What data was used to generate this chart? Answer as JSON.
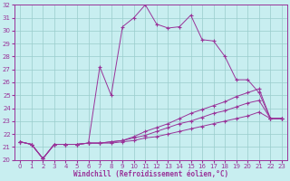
{
  "xlabel": "Windchill (Refroidissement éolien,°C)",
  "background_color": "#c8eef0",
  "line_color": "#993399",
  "grid_color": "#99cccc",
  "spine_color": "#993399",
  "xlim": [
    -0.5,
    23.5
  ],
  "ylim": [
    20,
    32
  ],
  "xticks": [
    0,
    1,
    2,
    3,
    4,
    5,
    6,
    7,
    8,
    9,
    10,
    11,
    12,
    13,
    14,
    15,
    16,
    17,
    18,
    19,
    20,
    21,
    22,
    23
  ],
  "yticks": [
    20,
    21,
    22,
    23,
    24,
    25,
    26,
    27,
    28,
    29,
    30,
    31,
    32
  ],
  "tick_fontsize": 5,
  "xlabel_fontsize": 5.5,
  "lines": [
    {
      "x": [
        0,
        1,
        2,
        3,
        4,
        5,
        6,
        7,
        8,
        9,
        10,
        11,
        12,
        13,
        14,
        15,
        16,
        17,
        18,
        19,
        20,
        21,
        22,
        23
      ],
      "y": [
        21.4,
        21.2,
        20.1,
        21.2,
        21.2,
        21.2,
        21.3,
        27.2,
        25.0,
        30.3,
        31.0,
        32.0,
        30.5,
        30.2,
        30.3,
        31.2,
        29.3,
        29.2,
        28.0,
        26.2,
        26.2,
        25.2,
        23.2,
        23.2
      ],
      "marker_x": [
        0,
        1,
        2,
        3,
        4,
        5,
        6,
        7,
        8,
        9,
        10,
        11,
        12,
        13,
        14,
        15,
        16,
        17,
        18,
        19,
        20,
        21,
        22,
        23
      ],
      "marker_y": [
        21.4,
        21.2,
        20.1,
        21.2,
        21.2,
        21.2,
        21.3,
        27.2,
        25.0,
        30.3,
        31.0,
        32.0,
        30.5,
        30.2,
        30.3,
        31.2,
        29.3,
        29.2,
        28.0,
        26.2,
        26.2,
        25.2,
        23.2,
        23.2
      ]
    },
    {
      "x": [
        0,
        1,
        2,
        3,
        4,
        5,
        6,
        7,
        8,
        9,
        10,
        11,
        12,
        13,
        14,
        15,
        16,
        17,
        18,
        19,
        20,
        21,
        22,
        23
      ],
      "y": [
        21.4,
        21.2,
        20.1,
        21.2,
        21.2,
        21.2,
        21.3,
        21.3,
        21.4,
        21.5,
        21.8,
        22.2,
        22.5,
        22.8,
        23.2,
        23.6,
        23.9,
        24.2,
        24.5,
        24.9,
        25.2,
        25.5,
        23.2,
        23.2
      ],
      "marker_x": [
        0,
        1,
        2,
        3,
        4,
        5,
        6,
        7,
        8,
        9,
        10,
        11,
        12,
        13,
        14,
        15,
        16,
        17,
        18,
        19,
        20,
        21,
        22,
        23
      ],
      "marker_y": [
        21.4,
        21.2,
        20.1,
        21.2,
        21.2,
        21.2,
        21.3,
        21.3,
        21.4,
        21.5,
        21.8,
        22.2,
        22.5,
        22.8,
        23.2,
        23.6,
        23.9,
        24.2,
        24.5,
        24.9,
        25.2,
        25.5,
        23.2,
        23.2
      ]
    },
    {
      "x": [
        0,
        1,
        2,
        3,
        4,
        5,
        6,
        7,
        8,
        9,
        10,
        11,
        12,
        13,
        14,
        15,
        16,
        17,
        18,
        19,
        20,
        21,
        22,
        23
      ],
      "y": [
        21.4,
        21.2,
        20.1,
        21.2,
        21.2,
        21.2,
        21.3,
        21.3,
        21.4,
        21.5,
        21.7,
        21.9,
        22.2,
        22.5,
        22.8,
        23.0,
        23.3,
        23.6,
        23.8,
        24.1,
        24.4,
        24.6,
        23.2,
        23.2
      ],
      "marker_x": [
        0,
        1,
        2,
        3,
        4,
        5,
        6,
        7,
        8,
        9,
        10,
        11,
        12,
        13,
        14,
        15,
        16,
        17,
        18,
        19,
        20,
        21,
        22,
        23
      ],
      "marker_y": [
        21.4,
        21.2,
        20.1,
        21.2,
        21.2,
        21.2,
        21.3,
        21.3,
        21.4,
        21.5,
        21.7,
        21.9,
        22.2,
        22.5,
        22.8,
        23.0,
        23.3,
        23.6,
        23.8,
        24.1,
        24.4,
        24.6,
        23.2,
        23.2
      ]
    },
    {
      "x": [
        0,
        1,
        2,
        3,
        4,
        5,
        6,
        7,
        8,
        9,
        10,
        11,
        12,
        13,
        14,
        15,
        16,
        17,
        18,
        19,
        20,
        21,
        22,
        23
      ],
      "y": [
        21.4,
        21.2,
        20.1,
        21.2,
        21.2,
        21.2,
        21.3,
        21.3,
        21.3,
        21.4,
        21.5,
        21.7,
        21.8,
        22.0,
        22.2,
        22.4,
        22.6,
        22.8,
        23.0,
        23.2,
        23.4,
        23.7,
        23.2,
        23.2
      ],
      "marker_x": [
        0,
        1,
        2,
        3,
        4,
        5,
        6,
        7,
        8,
        9,
        10,
        11,
        12,
        13,
        14,
        15,
        16,
        17,
        18,
        19,
        20,
        21,
        22,
        23
      ],
      "marker_y": [
        21.4,
        21.2,
        20.1,
        21.2,
        21.2,
        21.2,
        21.3,
        21.3,
        21.3,
        21.4,
        21.5,
        21.7,
        21.8,
        22.0,
        22.2,
        22.4,
        22.6,
        22.8,
        23.0,
        23.2,
        23.4,
        23.7,
        23.2,
        23.2
      ]
    }
  ]
}
